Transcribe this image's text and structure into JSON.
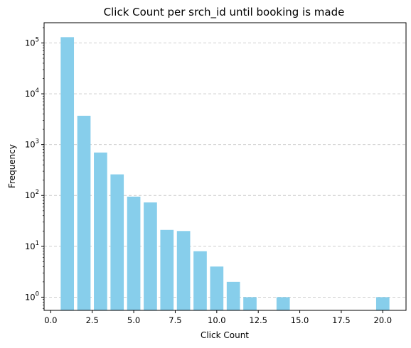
{
  "chart_data": {
    "type": "bar",
    "title": "Click Count per srch_id until booking is made",
    "xlabel": "Click Count",
    "ylabel": "Frequency",
    "y_scale": "log",
    "grid": "y-dashed",
    "bar_color": "#87CEEB",
    "xlim": [
      -0.4,
      21.4
    ],
    "ylim": [
      0.55,
      250000
    ],
    "x_ticks": [
      0.0,
      2.5,
      5.0,
      7.5,
      10.0,
      12.5,
      15.0,
      17.5,
      20.0
    ],
    "x_tick_labels": [
      "0.0",
      "2.5",
      "5.0",
      "7.5",
      "10.0",
      "12.5",
      "15.0",
      "17.5",
      "20.0"
    ],
    "y_ticks": [
      {
        "value": 1,
        "base": "10",
        "exp": "0"
      },
      {
        "value": 10,
        "base": "10",
        "exp": "1"
      },
      {
        "value": 100,
        "base": "10",
        "exp": "2"
      },
      {
        "value": 1000,
        "base": "10",
        "exp": "3"
      },
      {
        "value": 10000,
        "base": "10",
        "exp": "4"
      },
      {
        "value": 100000,
        "base": "10",
        "exp": "5"
      }
    ],
    "x": [
      1,
      2,
      3,
      4,
      5,
      6,
      7,
      8,
      9,
      10,
      11,
      12,
      14,
      20
    ],
    "values": [
      130000,
      3700,
      700,
      260,
      95,
      73,
      21,
      20,
      8,
      4,
      2,
      1,
      1,
      1
    ]
  }
}
